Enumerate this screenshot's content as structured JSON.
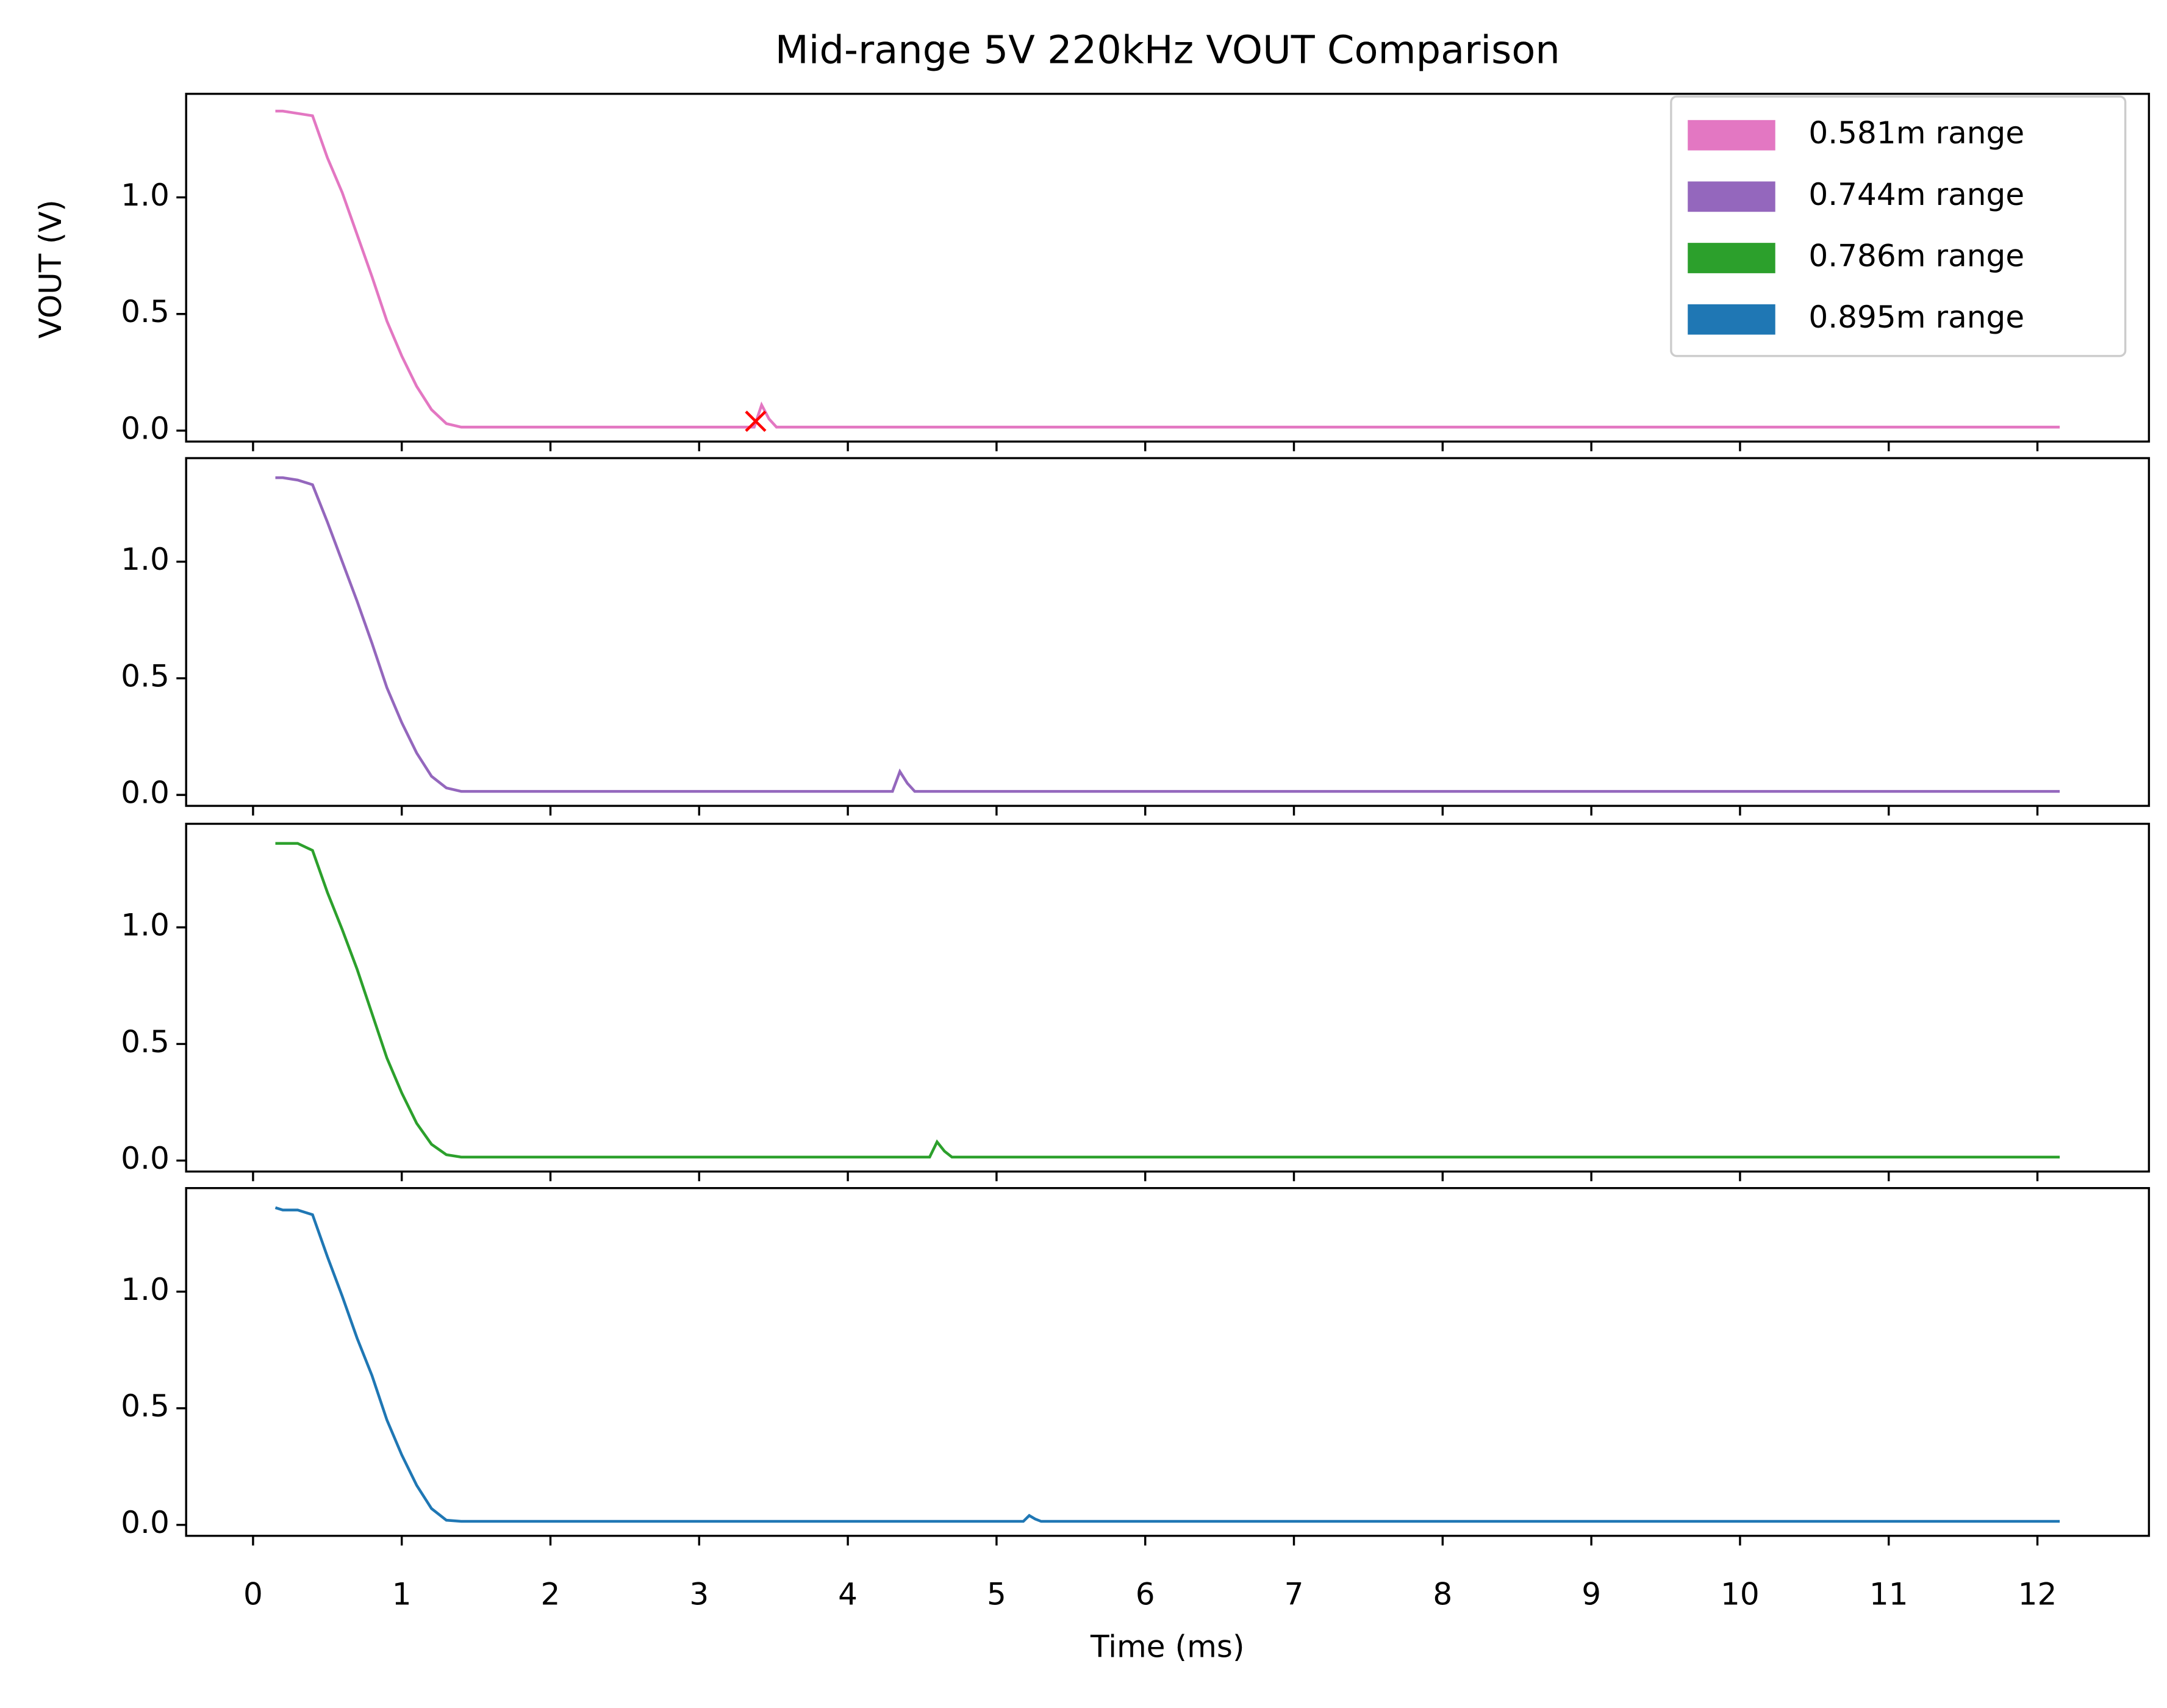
{
  "chart_data": [
    {
      "type": "line",
      "title": "Mid-range 5V 220kHz VOUT Comparison",
      "ylabel": "VOUT (V)",
      "legend": "upper right",
      "xlim": [
        -0.45,
        12.75
      ],
      "xticks": [
        0,
        1,
        2,
        3,
        4,
        5,
        6,
        7,
        8,
        9,
        10,
        11,
        12
      ],
      "ylim": [
        -0.047,
        1.444
      ],
      "yticks": [
        {
          "value": 0,
          "label": "0.0"
        },
        {
          "value": 0.5,
          "label": "0.5"
        },
        {
          "value": 1,
          "label": "1.0"
        }
      ],
      "series": [
        {
          "name": "0.581m range",
          "color": "#e377c2",
          "x": [
            0.15,
            0.2,
            0.3,
            0.4,
            0.5,
            0.6,
            0.7,
            0.8,
            0.9,
            1.0,
            1.1,
            1.2,
            1.3,
            1.4,
            2,
            3,
            3.37,
            3.42,
            3.47,
            3.52,
            6,
            8,
            10,
            12.15
          ],
          "values": [
            1.37,
            1.37,
            1.36,
            1.35,
            1.17,
            1.02,
            0.84,
            0.66,
            0.47,
            0.32,
            0.19,
            0.09,
            0.03,
            0.015,
            0.015,
            0.015,
            0.015,
            0.11,
            0.05,
            0.015,
            0.015,
            0.015,
            0.015,
            0.015
          ]
        }
      ],
      "markers": [
        {
          "x": 3.38,
          "y": 0.04,
          "color": "#ff0000"
        }
      ]
    },
    {
      "type": "line",
      "xlim": [
        -0.45,
        12.75
      ],
      "xticks": [
        0,
        1,
        2,
        3,
        4,
        5,
        6,
        7,
        8,
        9,
        10,
        11,
        12
      ],
      "ylim": [
        -0.047,
        1.444
      ],
      "yticks": [
        {
          "value": 0,
          "label": "0.0"
        },
        {
          "value": 0.5,
          "label": "0.5"
        },
        {
          "value": 1,
          "label": "1.0"
        }
      ],
      "series": [
        {
          "name": "0.744m range",
          "color": "#9467bd",
          "x": [
            0.15,
            0.2,
            0.3,
            0.4,
            0.5,
            0.6,
            0.7,
            0.8,
            0.9,
            1.0,
            1.1,
            1.2,
            1.3,
            1.4,
            2,
            3,
            4.3,
            4.35,
            4.4,
            4.45,
            6,
            8,
            10,
            12.15
          ],
          "values": [
            1.36,
            1.36,
            1.35,
            1.33,
            1.17,
            1.0,
            0.83,
            0.65,
            0.46,
            0.31,
            0.18,
            0.08,
            0.03,
            0.015,
            0.015,
            0.015,
            0.015,
            0.1,
            0.05,
            0.015,
            0.015,
            0.015,
            0.015,
            0.015
          ]
        }
      ]
    },
    {
      "type": "line",
      "xlim": [
        -0.45,
        12.75
      ],
      "xticks": [
        0,
        1,
        2,
        3,
        4,
        5,
        6,
        7,
        8,
        9,
        10,
        11,
        12
      ],
      "ylim": [
        -0.047,
        1.444
      ],
      "yticks": [
        {
          "value": 0,
          "label": "0.0"
        },
        {
          "value": 0.5,
          "label": "0.5"
        },
        {
          "value": 1,
          "label": "1.0"
        }
      ],
      "series": [
        {
          "name": "0.786m range",
          "color": "#2ca02c",
          "x": [
            0.15,
            0.2,
            0.3,
            0.4,
            0.5,
            0.6,
            0.7,
            0.8,
            0.9,
            1.0,
            1.1,
            1.2,
            1.3,
            1.4,
            2,
            3,
            4.55,
            4.6,
            4.65,
            4.7,
            6,
            8,
            10,
            12.15
          ],
          "values": [
            1.36,
            1.36,
            1.36,
            1.33,
            1.15,
            0.99,
            0.82,
            0.63,
            0.44,
            0.29,
            0.16,
            0.07,
            0.025,
            0.015,
            0.015,
            0.015,
            0.015,
            0.08,
            0.04,
            0.015,
            0.015,
            0.015,
            0.015,
            0.015
          ]
        }
      ]
    },
    {
      "type": "line",
      "xlabel": "Time (ms)",
      "xlim": [
        -0.45,
        12.75
      ],
      "xticks": [
        0,
        1,
        2,
        3,
        4,
        5,
        6,
        7,
        8,
        9,
        10,
        11,
        12
      ],
      "ylim": [
        -0.047,
        1.444
      ],
      "yticks": [
        {
          "value": 0,
          "label": "0.0"
        },
        {
          "value": 0.5,
          "label": "0.5"
        },
        {
          "value": 1,
          "label": "1.0"
        }
      ],
      "series": [
        {
          "name": "0.895m range",
          "color": "#1f77b4",
          "x": [
            0.15,
            0.2,
            0.3,
            0.4,
            0.5,
            0.6,
            0.7,
            0.8,
            0.9,
            1.0,
            1.1,
            1.2,
            1.3,
            1.4,
            2,
            3,
            5.18,
            5.22,
            5.26,
            5.3,
            6,
            8,
            10,
            12.15
          ],
          "values": [
            1.36,
            1.35,
            1.35,
            1.33,
            1.15,
            0.98,
            0.8,
            0.64,
            0.45,
            0.3,
            0.17,
            0.07,
            0.02,
            0.015,
            0.015,
            0.015,
            0.015,
            0.04,
            0.025,
            0.015,
            0.015,
            0.015,
            0.015,
            0.015
          ]
        }
      ]
    }
  ]
}
